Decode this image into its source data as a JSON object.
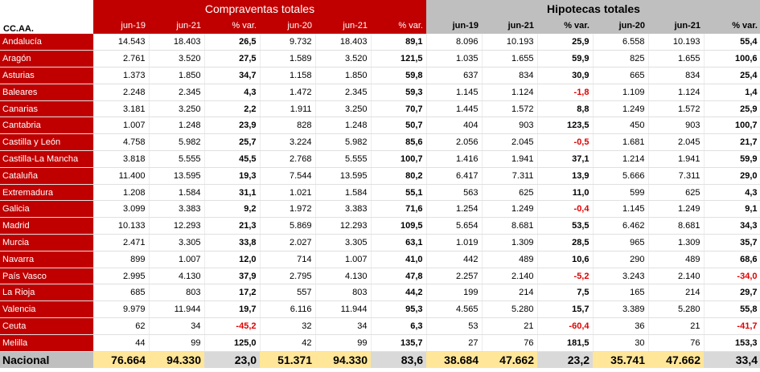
{
  "header": {
    "corner": "CC.AA.",
    "group1": "Compraventas totales",
    "group2": "Hipotecas totales",
    "cols": [
      "jun-19",
      "jun-21",
      "% var.",
      "jun-20",
      "jun-21",
      "% var.",
      "jun-19",
      "jun-21",
      "% var.",
      "jun-20",
      "jun-21",
      "% var."
    ]
  },
  "rows": [
    {
      "name": "Andalucía",
      "v": [
        "14.543",
        "18.403",
        "26,5",
        "9.732",
        "18.403",
        "89,1",
        "8.096",
        "10.193",
        "25,9",
        "6.558",
        "10.193",
        "55,4"
      ]
    },
    {
      "name": "Aragón",
      "v": [
        "2.761",
        "3.520",
        "27,5",
        "1.589",
        "3.520",
        "121,5",
        "1.035",
        "1.655",
        "59,9",
        "825",
        "1.655",
        "100,6"
      ]
    },
    {
      "name": "Asturias",
      "v": [
        "1.373",
        "1.850",
        "34,7",
        "1.158",
        "1.850",
        "59,8",
        "637",
        "834",
        "30,9",
        "665",
        "834",
        "25,4"
      ]
    },
    {
      "name": "Baleares",
      "v": [
        "2.248",
        "2.345",
        "4,3",
        "1.472",
        "2.345",
        "59,3",
        "1.145",
        "1.124",
        "-1,8",
        "1.109",
        "1.124",
        "1,4"
      ]
    },
    {
      "name": "Canarias",
      "v": [
        "3.181",
        "3.250",
        "2,2",
        "1.911",
        "3.250",
        "70,7",
        "1.445",
        "1.572",
        "8,8",
        "1.249",
        "1.572",
        "25,9"
      ]
    },
    {
      "name": "Cantabria",
      "v": [
        "1.007",
        "1.248",
        "23,9",
        "828",
        "1.248",
        "50,7",
        "404",
        "903",
        "123,5",
        "450",
        "903",
        "100,7"
      ]
    },
    {
      "name": "Castilla y León",
      "v": [
        "4.758",
        "5.982",
        "25,7",
        "3.224",
        "5.982",
        "85,6",
        "2.056",
        "2.045",
        "-0,5",
        "1.681",
        "2.045",
        "21,7"
      ]
    },
    {
      "name": "Castilla-La Mancha",
      "v": [
        "3.818",
        "5.555",
        "45,5",
        "2.768",
        "5.555",
        "100,7",
        "1.416",
        "1.941",
        "37,1",
        "1.214",
        "1.941",
        "59,9"
      ]
    },
    {
      "name": "Cataluña",
      "v": [
        "11.400",
        "13.595",
        "19,3",
        "7.544",
        "13.595",
        "80,2",
        "6.417",
        "7.311",
        "13,9",
        "5.666",
        "7.311",
        "29,0"
      ]
    },
    {
      "name": "Extremadura",
      "v": [
        "1.208",
        "1.584",
        "31,1",
        "1.021",
        "1.584",
        "55,1",
        "563",
        "625",
        "11,0",
        "599",
        "625",
        "4,3"
      ]
    },
    {
      "name": "Galicia",
      "v": [
        "3.099",
        "3.383",
        "9,2",
        "1.972",
        "3.383",
        "71,6",
        "1.254",
        "1.249",
        "-0,4",
        "1.145",
        "1.249",
        "9,1"
      ]
    },
    {
      "name": "Madrid",
      "v": [
        "10.133",
        "12.293",
        "21,3",
        "5.869",
        "12.293",
        "109,5",
        "5.654",
        "8.681",
        "53,5",
        "6.462",
        "8.681",
        "34,3"
      ]
    },
    {
      "name": "Murcia",
      "v": [
        "2.471",
        "3.305",
        "33,8",
        "2.027",
        "3.305",
        "63,1",
        "1.019",
        "1.309",
        "28,5",
        "965",
        "1.309",
        "35,7"
      ]
    },
    {
      "name": "Navarra",
      "v": [
        "899",
        "1.007",
        "12,0",
        "714",
        "1.007",
        "41,0",
        "442",
        "489",
        "10,6",
        "290",
        "489",
        "68,6"
      ]
    },
    {
      "name": "País Vasco",
      "v": [
        "2.995",
        "4.130",
        "37,9",
        "2.795",
        "4.130",
        "47,8",
        "2.257",
        "2.140",
        "-5,2",
        "3.243",
        "2.140",
        "-34,0"
      ]
    },
    {
      "name": "La Rioja",
      "v": [
        "685",
        "803",
        "17,2",
        "557",
        "803",
        "44,2",
        "199",
        "214",
        "7,5",
        "165",
        "214",
        "29,7"
      ]
    },
    {
      "name": "Valencia",
      "v": [
        "9.979",
        "11.944",
        "19,7",
        "6.116",
        "11.944",
        "95,3",
        "4.565",
        "5.280",
        "15,7",
        "3.389",
        "5.280",
        "55,8"
      ]
    },
    {
      "name": "Ceuta",
      "v": [
        "62",
        "34",
        "-45,2",
        "32",
        "34",
        "6,3",
        "53",
        "21",
        "-60,4",
        "36",
        "21",
        "-41,7"
      ]
    },
    {
      "name": "Melilla",
      "v": [
        "44",
        "99",
        "125,0",
        "42",
        "99",
        "135,7",
        "27",
        "76",
        "181,5",
        "30",
        "76",
        "153,3"
      ]
    }
  ],
  "total": {
    "name": "Nacional",
    "v": [
      "76.664",
      "94.330",
      "23,0",
      "51.371",
      "94.330",
      "83,6",
      "38.684",
      "47.662",
      "23,2",
      "35.741",
      "47.662",
      "33,4"
    ]
  }
}
